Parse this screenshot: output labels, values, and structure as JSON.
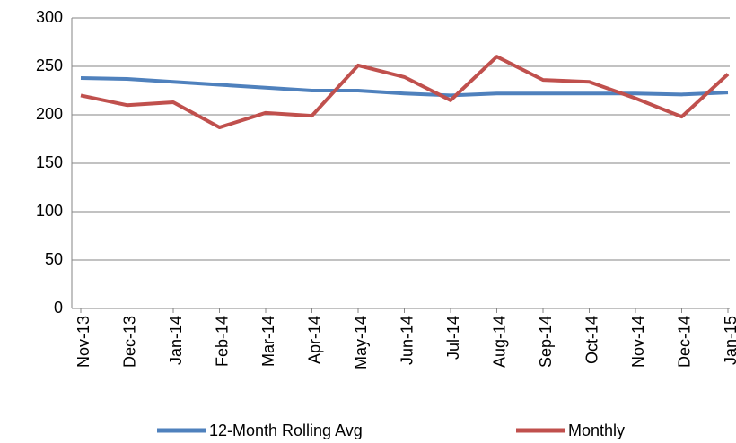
{
  "chart_data": {
    "type": "line",
    "categories": [
      "Nov-13",
      "Dec-13",
      "Jan-14",
      "Feb-14",
      "Mar-14",
      "Apr-14",
      "May-14",
      "Jun-14",
      "Jul-14",
      "Aug-14",
      "Sep-14",
      "Oct-14",
      "Nov-14",
      "Dec-14",
      "Jan-15"
    ],
    "series": [
      {
        "name": "12-Month Rolling Avg",
        "color": "#4f81bd",
        "values": [
          238,
          237,
          234,
          231,
          228,
          225,
          225,
          222,
          220,
          222,
          222,
          222,
          222,
          221,
          223
        ]
      },
      {
        "name": "Monthly",
        "color": "#c0504d",
        "values": [
          220,
          210,
          213,
          187,
          202,
          199,
          251,
          239,
          215,
          260,
          236,
          234,
          217,
          198,
          242
        ]
      }
    ],
    "ylim": [
      0,
      300
    ],
    "yticks": [
      0,
      50,
      100,
      150,
      200,
      250,
      300
    ],
    "grid": true,
    "legend": "bottom"
  }
}
